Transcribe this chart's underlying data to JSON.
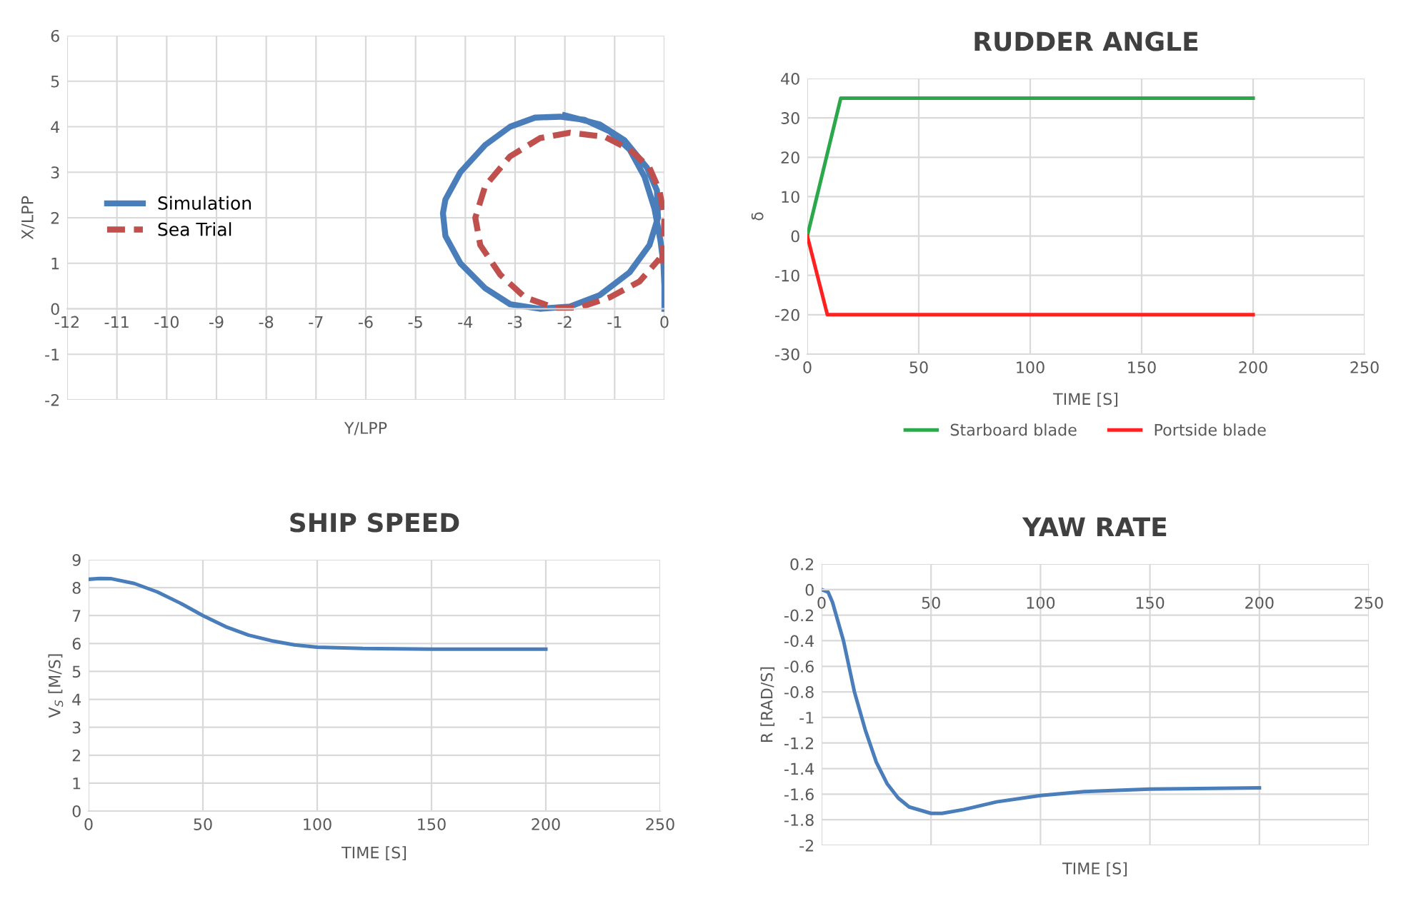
{
  "chart_data": [
    {
      "type": "line",
      "xlabel": "Y/LPP",
      "ylabel": "X/LPP",
      "xlim": [
        -12,
        0
      ],
      "ylim": [
        -2,
        6
      ],
      "xticks": [
        -12,
        -11,
        -10,
        -9,
        -8,
        -7,
        -6,
        -5,
        -4,
        -3,
        -2,
        -1,
        0
      ],
      "yticks": [
        -2,
        -1,
        0,
        1,
        2,
        3,
        4,
        5,
        6
      ],
      "grid": true,
      "legend": "left",
      "series": [
        {
          "name": "Simulation",
          "color": "#4a7ebb",
          "line_style": "solid",
          "x": [
            0,
            0,
            -0.02,
            -0.08,
            -0.2,
            -0.4,
            -0.7,
            -1.1,
            -1.6,
            -2.1,
            -2.6,
            -3.1,
            -3.6,
            -4.1,
            -4.4,
            -4.45,
            -4.4,
            -4.1,
            -3.6,
            -3.1,
            -2.5,
            -1.9,
            -1.3,
            -0.7,
            -0.3,
            -0.13,
            -0.15,
            -0.35,
            -0.8,
            -1.3,
            -2.0
          ],
          "values": [
            0,
            0.5,
            1,
            1.5,
            2.2,
            2.9,
            3.5,
            3.9,
            4.15,
            4.22,
            4.2,
            4.0,
            3.6,
            3.0,
            2.4,
            2.1,
            1.6,
            1.0,
            0.45,
            0.1,
            0,
            0.05,
            0.3,
            0.8,
            1.4,
            2.0,
            2.6,
            3.1,
            3.7,
            4.05,
            4.25
          ]
        },
        {
          "name": "Sea Trial",
          "color": "#c0504d",
          "line_style": "dashed",
          "x": [
            -0.05,
            -0.02,
            0,
            -0.1,
            -0.3,
            -0.7,
            -1.2,
            -1.9,
            -2.5,
            -3.1,
            -3.6,
            -3.8,
            -3.7,
            -3.3,
            -2.8,
            -2.2,
            -1.7,
            -1.1,
            -0.5,
            -0.1
          ],
          "values": [
            1.0,
            1.5,
            2.0,
            2.6,
            3.1,
            3.5,
            3.78,
            3.87,
            3.75,
            3.35,
            2.7,
            2.0,
            1.4,
            0.75,
            0.25,
            0.02,
            0.03,
            0.25,
            0.6,
            1.1
          ]
        }
      ]
    },
    {
      "type": "line",
      "title": "RUDDER ANGLE",
      "xlabel": "TIME [S]",
      "ylabel": "δ",
      "xlim": [
        0,
        250
      ],
      "ylim": [
        -30,
        40
      ],
      "xticks": [
        0,
        50,
        100,
        150,
        200,
        250
      ],
      "yticks": [
        -30,
        -20,
        -10,
        0,
        10,
        20,
        30,
        40
      ],
      "grid": true,
      "legend": "bottom",
      "series": [
        {
          "name": "Starboard blade",
          "color": "#2aa84a",
          "x": [
            0,
            15,
            200
          ],
          "values": [
            0,
            35,
            35
          ]
        },
        {
          "name": "Portside blade",
          "color": "#ff2020",
          "x": [
            0,
            9,
            200
          ],
          "values": [
            0,
            -20,
            -20
          ]
        }
      ]
    },
    {
      "type": "line",
      "title": "SHIP SPEED",
      "xlabel": "TIME [S]",
      "ylabel": "V$_{S}$ [M/S]",
      "xlim": [
        0,
        250
      ],
      "ylim": [
        0,
        9
      ],
      "xticks": [
        0,
        50,
        100,
        150,
        200,
        250
      ],
      "yticks": [
        0,
        1,
        2,
        3,
        4,
        5,
        6,
        7,
        8,
        9
      ],
      "grid": true,
      "series": [
        {
          "color": "#4a7ebb",
          "x": [
            0,
            5,
            10,
            20,
            30,
            40,
            50,
            60,
            70,
            80,
            90,
            100,
            120,
            150,
            200
          ],
          "values": [
            8.3,
            8.33,
            8.32,
            8.15,
            7.85,
            7.45,
            7.0,
            6.6,
            6.3,
            6.1,
            5.95,
            5.87,
            5.82,
            5.8,
            5.8
          ]
        }
      ]
    },
    {
      "type": "line",
      "title": "YAW RATE",
      "xlabel": "TIME [S]",
      "ylabel": "R [RAD/S]",
      "xlim": [
        0,
        250
      ],
      "ylim": [
        -2,
        0.2
      ],
      "xticks": [
        0,
        50,
        100,
        150,
        200,
        250
      ],
      "yticks": [
        -2,
        -1.8,
        -1.6,
        -1.4,
        -1.2,
        -1,
        -0.8,
        -0.6,
        -0.4,
        -0.2,
        0,
        0.2
      ],
      "grid": true,
      "series": [
        {
          "color": "#4a7ebb",
          "x": [
            0,
            3,
            5,
            10,
            15,
            20,
            25,
            30,
            35,
            40,
            50,
            55,
            65,
            80,
            100,
            120,
            150,
            200
          ],
          "values": [
            0,
            -0.02,
            -0.1,
            -0.4,
            -0.8,
            -1.1,
            -1.35,
            -1.52,
            -1.63,
            -1.7,
            -1.75,
            -1.75,
            -1.72,
            -1.66,
            -1.61,
            -1.58,
            -1.56,
            -1.55
          ]
        }
      ]
    }
  ]
}
